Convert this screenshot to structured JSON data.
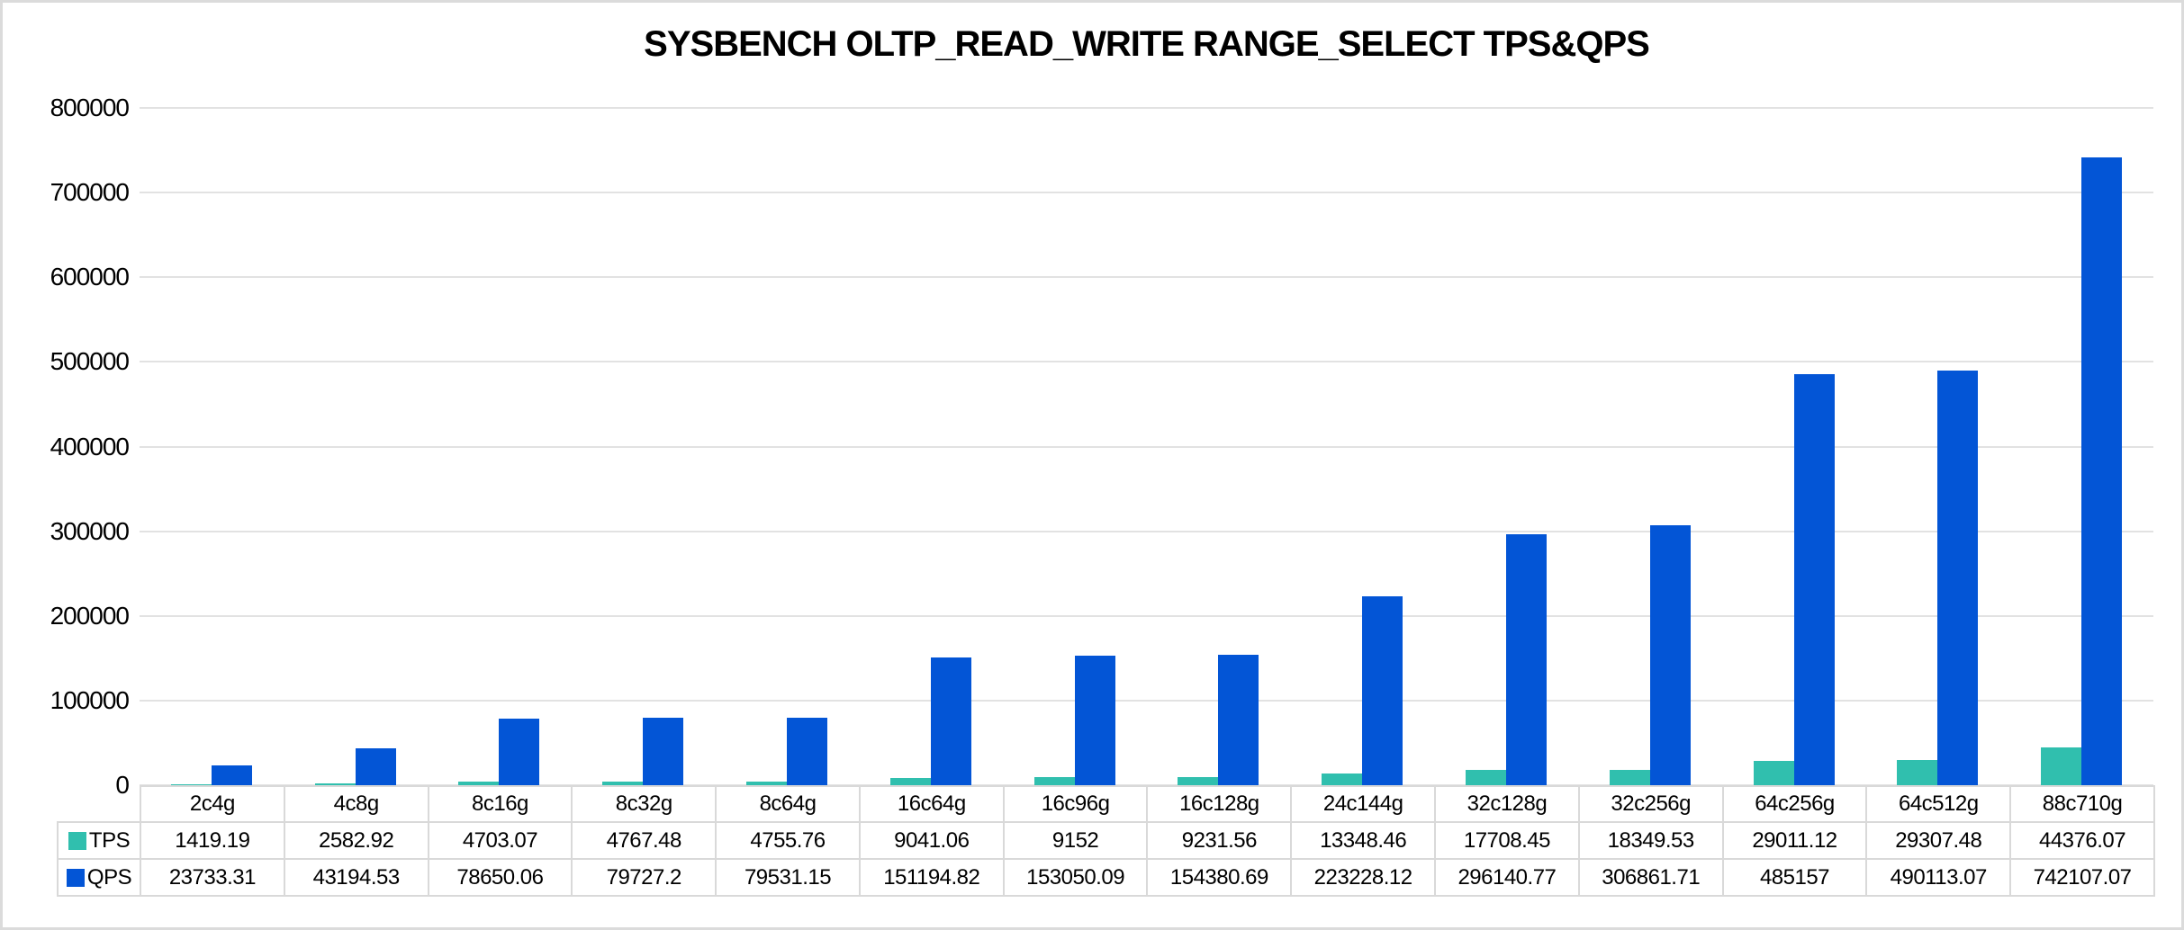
{
  "chart_data": {
    "type": "bar",
    "title": "SYSBENCH OLTP_READ_WRITE RANGE_SELECT TPS&QPS",
    "xlabel": "",
    "ylabel": "",
    "categories": [
      "2c4g",
      "4c8g",
      "8c16g",
      "8c32g",
      "8c64g",
      "16c64g",
      "16c96g",
      "16c128g",
      "24c144g",
      "32c128g",
      "32c256g",
      "64c256g",
      "64c512g",
      "88c710g"
    ],
    "series": [
      {
        "name": "TPS",
        "color": "#30bfae",
        "values": [
          1419.19,
          2582.92,
          4703.07,
          4767.48,
          4755.76,
          9041.06,
          9152,
          9231.56,
          13348.46,
          17708.45,
          18349.53,
          29011.12,
          29307.48,
          44376.07
        ]
      },
      {
        "name": "QPS",
        "color": "#0355d6",
        "values": [
          23733.31,
          43194.53,
          78650.06,
          79727.2,
          79531.15,
          151194.82,
          153050.09,
          154380.69,
          223228.12,
          296140.77,
          306861.71,
          485157,
          490113.07,
          742107.07
        ]
      }
    ],
    "ylim": [
      0,
      800000
    ],
    "ytick_step": 100000,
    "grid": true,
    "legend_position": "table-left"
  },
  "colors": {
    "grid": "#e2e2e2",
    "table_border": "#d9d9d9",
    "canvas_border": "#dbdbdb",
    "background": "#ffffff",
    "text": "#000000"
  }
}
